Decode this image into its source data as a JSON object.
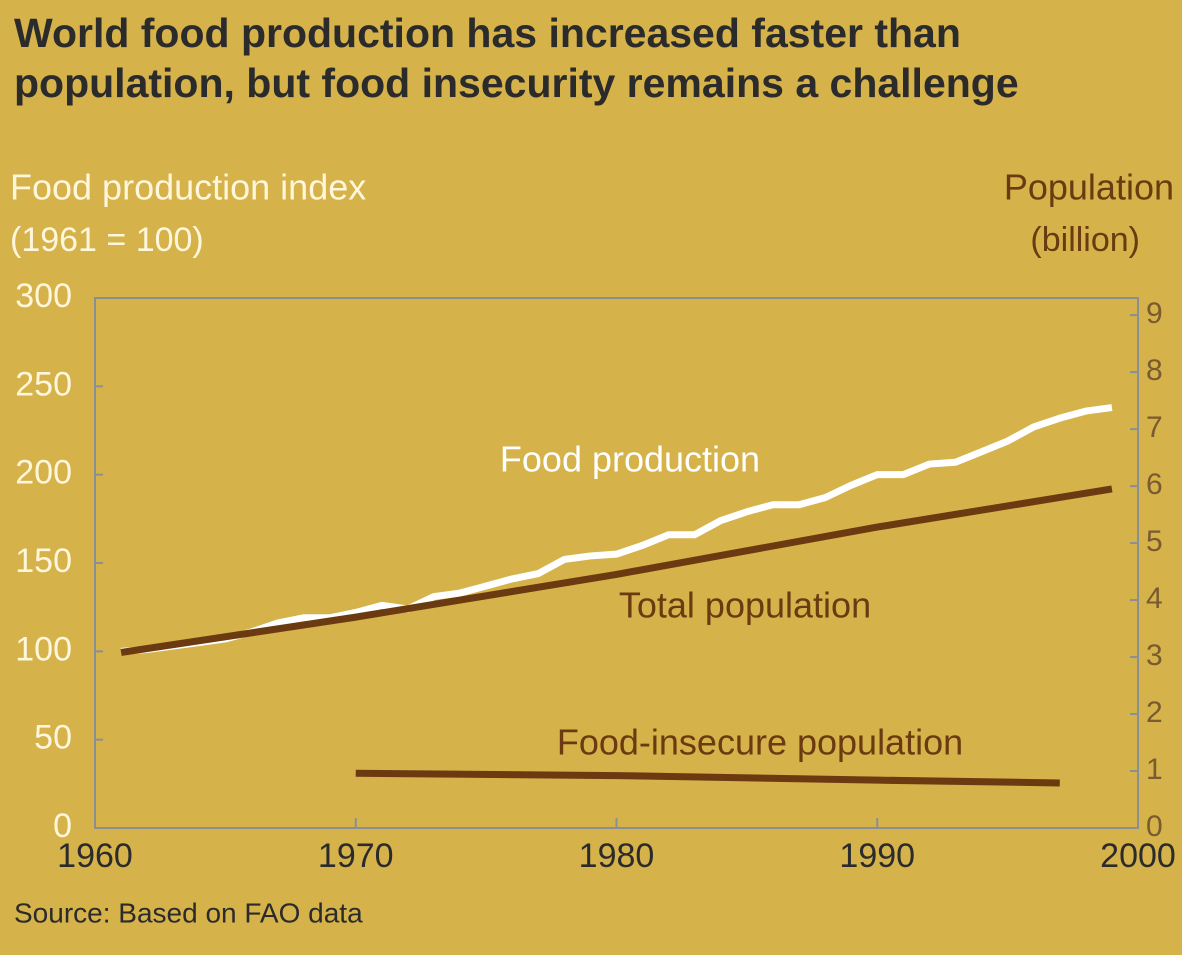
{
  "chart_data": {
    "type": "line",
    "title": "World food production has increased faster than population, but food insecurity remains a challenge",
    "ylabel": [
      "Food production index",
      "(1961 = 100)"
    ],
    "y2label": [
      "Population",
      "(billion)"
    ],
    "source": "Source:  Based on FAO data",
    "xlim": [
      1960,
      2000
    ],
    "xticks": [
      1960,
      1970,
      1980,
      1990,
      2000
    ],
    "ylim": [
      0,
      300
    ],
    "yticks": [
      0,
      50,
      100,
      150,
      200,
      250,
      300
    ],
    "y2lim": [
      0,
      9.3
    ],
    "y2ticks": [
      0,
      1,
      2,
      3,
      4,
      5,
      6,
      7,
      8,
      9
    ],
    "series": [
      {
        "name": "Food production",
        "color": "#ffffff",
        "x": [
          1961,
          1962,
          1963,
          1964,
          1965,
          1966,
          1967,
          1968,
          1969,
          1970,
          1971,
          1972,
          1973,
          1974,
          1975,
          1976,
          1977,
          1978,
          1979,
          1980,
          1981,
          1982,
          1983,
          1984,
          1985,
          1986,
          1987,
          1988,
          1989,
          1990,
          1991,
          1992,
          1993,
          1994,
          1995,
          1996,
          1997,
          1998,
          1999
        ],
        "values": [
          100,
          101,
          103,
          105,
          107,
          111,
          116,
          119,
          119,
          122,
          126,
          124,
          131,
          133,
          137,
          141,
          144,
          152,
          154,
          155,
          160,
          166,
          166,
          174,
          179,
          183,
          183,
          187,
          194,
          200,
          200,
          206,
          207,
          213,
          219,
          227,
          232,
          236,
          238
        ]
      },
      {
        "name": "Total population",
        "color": "#6b3a10",
        "axis": "y2",
        "x": [
          1961,
          1970,
          1980,
          1990,
          1999
        ],
        "values": [
          3.08,
          3.7,
          4.45,
          5.28,
          5.95
        ]
      },
      {
        "name": "Food-insecure population",
        "color": "#6b3a10",
        "axis": "y2",
        "x": [
          1970,
          1980,
          1990,
          1997
        ],
        "values": [
          0.96,
          0.92,
          0.84,
          0.79
        ]
      }
    ]
  }
}
